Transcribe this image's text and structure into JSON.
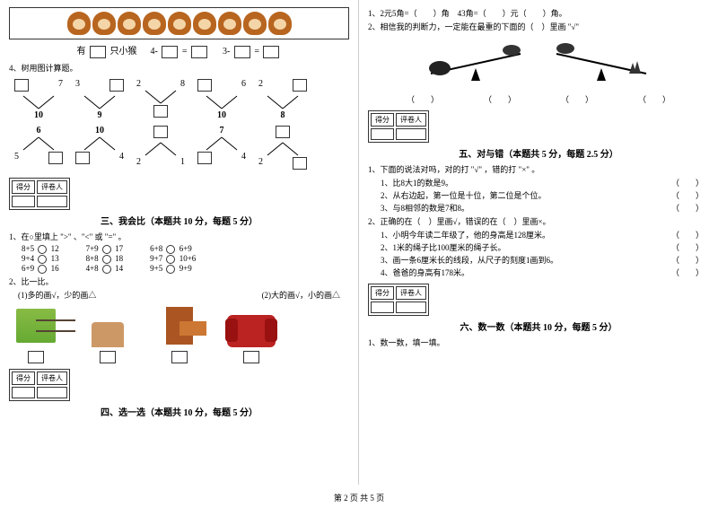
{
  "left": {
    "monkey_count": 9,
    "eq_line": {
      "you": "有",
      "zhi": "只小猴",
      "eq1_a": "4-",
      "eq1_eq": "=",
      "eq2_a": "3-",
      "eq2_eq": "="
    },
    "q4": "4、树用图计算题。",
    "trees1": [
      {
        "tl": "",
        "tr": "7",
        "b": "10"
      },
      {
        "tl": "3",
        "tr": "",
        "b": "9"
      },
      {
        "tl": "2",
        "tr": "8",
        "b": ""
      },
      {
        "tl": "",
        "tr": "6",
        "b": "10"
      },
      {
        "tl": "2",
        "tr": "",
        "b": "8"
      }
    ],
    "trees2": [
      {
        "t": "6",
        "bl": "5",
        "br": ""
      },
      {
        "t": "10",
        "bl": "",
        "br": "4"
      },
      {
        "t": "",
        "bl": "2",
        "br": "1"
      },
      {
        "t": "7",
        "bl": "",
        "br": "4"
      },
      {
        "t": "",
        "bl": "2",
        "br": ""
      }
    ],
    "score": {
      "a": "得分",
      "b": "评卷人"
    },
    "sec3": "三、我会比（本题共 10 分，每题 5 分）",
    "q3_1": "1、在○里填上 \">\" 、\"<\" 或 \"=\" 。",
    "comp": [
      [
        "8+5",
        "12",
        "7+9",
        "17",
        "6+8",
        "6+9"
      ],
      [
        "9+4",
        "13",
        "8+8",
        "18",
        "9+7",
        "10+6"
      ],
      [
        "6+9",
        "16",
        "4+8",
        "14",
        "9+5",
        "9+9"
      ]
    ],
    "q3_2": "2、比一比。",
    "q3_2a": "(1)多的画√，少的画△",
    "q3_2b": "(2)大的画√，小的画△",
    "sec4": "四、选一选（本题共 10 分，每题 5 分）"
  },
  "right": {
    "q1": "1、2元5角=（　　）角　43角=（　　）元（　　）角。",
    "q2": "2、相信我的判断力，一定能在最重的下面的（　）里画 \"√\"",
    "paren": "（　　）",
    "sec5": "五、对与错（本题共 5 分，每题 2.5 分）",
    "tf1": "1、下面的说法对吗，对的打 \"√\" ，错的打 \"×\" 。",
    "tf_items1": [
      "1、比8大1的数是9。",
      "2、从右边起，第一位是十位，第二位是个位。",
      "3、与8相邻的数是7和8。"
    ],
    "tf2": "2、正确的在（　）里画√，错误的在（　）里画×。",
    "tf_items2": [
      "1、小明今年读二年级了，他的身高是128厘米。",
      "2、1米的绳子比100厘米的绳子长。",
      "3、画一条6厘米长的线段，从尺子的刻度1画到6。",
      "4、爸爸的身高有178米。"
    ],
    "paren_tf": "（　　）",
    "sec6": "六、数一数（本题共 10 分，每题 5 分）",
    "q6_1": "1、数一数，填一填。"
  },
  "footer": "第 2 页 共 5 页"
}
